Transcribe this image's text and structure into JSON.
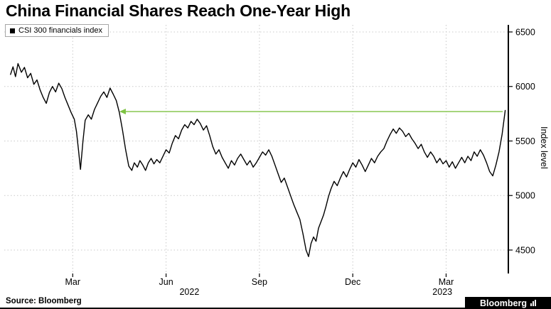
{
  "title": "China Financial Shares Reach One-Year High",
  "legend": {
    "label": "CSI 300 financials index"
  },
  "y_axis_label": "Index level",
  "source": "Source: Bloomberg",
  "brand": {
    "name": "Bloomberg"
  },
  "chart_data": {
    "type": "line",
    "series_name": "CSI 300 financials index",
    "title": "China Financial Shares Reach One-Year High",
    "ylabel": "Index level",
    "line_color": "#000000",
    "grid_color": "#c9c9c9",
    "grid": "dotted",
    "x_unit": "months_since_jan_2022",
    "xlim": [
      -0.2,
      16.0
    ],
    "ylim": [
      4285,
      6565
    ],
    "y_ticks": [
      4500,
      5000,
      5500,
      6000,
      6500
    ],
    "x_ticks": [
      {
        "t": 2,
        "label": "Mar"
      },
      {
        "t": 5,
        "label": "Jun"
      },
      {
        "t": 8,
        "label": "Sep"
      },
      {
        "t": 11,
        "label": "Dec"
      },
      {
        "t": 14,
        "label": "Mar"
      }
    ],
    "year_labels": [
      {
        "t": 5.75,
        "label": "2022"
      },
      {
        "t": 13.88,
        "label": "2023"
      }
    ],
    "annotation_arrow": {
      "value": 5770,
      "t_from": 15.82,
      "t_to": 3.5,
      "color": "#7dc242"
    },
    "points": [
      [
        0.0,
        6110
      ],
      [
        0.08,
        6180
      ],
      [
        0.16,
        6090
      ],
      [
        0.24,
        6210
      ],
      [
        0.35,
        6130
      ],
      [
        0.45,
        6175
      ],
      [
        0.55,
        6080
      ],
      [
        0.65,
        6120
      ],
      [
        0.75,
        6020
      ],
      [
        0.85,
        6060
      ],
      [
        0.95,
        5970
      ],
      [
        1.05,
        5900
      ],
      [
        1.15,
        5845
      ],
      [
        1.25,
        5945
      ],
      [
        1.35,
        6000
      ],
      [
        1.45,
        5950
      ],
      [
        1.55,
        6030
      ],
      [
        1.65,
        5980
      ],
      [
        1.75,
        5900
      ],
      [
        1.85,
        5830
      ],
      [
        1.95,
        5760
      ],
      [
        2.05,
        5700
      ],
      [
        2.12,
        5590
      ],
      [
        2.18,
        5430
      ],
      [
        2.25,
        5240
      ],
      [
        2.33,
        5500
      ],
      [
        2.4,
        5690
      ],
      [
        2.5,
        5740
      ],
      [
        2.6,
        5700
      ],
      [
        2.7,
        5790
      ],
      [
        2.8,
        5850
      ],
      [
        2.9,
        5910
      ],
      [
        3.0,
        5950
      ],
      [
        3.1,
        5900
      ],
      [
        3.2,
        5985
      ],
      [
        3.3,
        5930
      ],
      [
        3.4,
        5870
      ],
      [
        3.5,
        5760
      ],
      [
        3.6,
        5600
      ],
      [
        3.7,
        5420
      ],
      [
        3.8,
        5270
      ],
      [
        3.9,
        5230
      ],
      [
        3.98,
        5300
      ],
      [
        4.08,
        5260
      ],
      [
        4.16,
        5320
      ],
      [
        4.25,
        5280
      ],
      [
        4.34,
        5230
      ],
      [
        4.43,
        5300
      ],
      [
        4.52,
        5340
      ],
      [
        4.61,
        5290
      ],
      [
        4.7,
        5330
      ],
      [
        4.8,
        5300
      ],
      [
        4.9,
        5360
      ],
      [
        5.0,
        5420
      ],
      [
        5.1,
        5390
      ],
      [
        5.2,
        5480
      ],
      [
        5.3,
        5550
      ],
      [
        5.4,
        5520
      ],
      [
        5.5,
        5600
      ],
      [
        5.6,
        5650
      ],
      [
        5.7,
        5620
      ],
      [
        5.8,
        5680
      ],
      [
        5.9,
        5650
      ],
      [
        6.0,
        5700
      ],
      [
        6.1,
        5660
      ],
      [
        6.2,
        5600
      ],
      [
        6.3,
        5640
      ],
      [
        6.4,
        5550
      ],
      [
        6.5,
        5450
      ],
      [
        6.6,
        5380
      ],
      [
        6.7,
        5420
      ],
      [
        6.8,
        5350
      ],
      [
        6.9,
        5300
      ],
      [
        7.0,
        5250
      ],
      [
        7.1,
        5320
      ],
      [
        7.2,
        5280
      ],
      [
        7.3,
        5340
      ],
      [
        7.4,
        5380
      ],
      [
        7.5,
        5330
      ],
      [
        7.6,
        5280
      ],
      [
        7.7,
        5320
      ],
      [
        7.8,
        5260
      ],
      [
        7.9,
        5300
      ],
      [
        8.0,
        5350
      ],
      [
        8.1,
        5400
      ],
      [
        8.2,
        5370
      ],
      [
        8.3,
        5420
      ],
      [
        8.4,
        5360
      ],
      [
        8.5,
        5280
      ],
      [
        8.6,
        5200
      ],
      [
        8.7,
        5120
      ],
      [
        8.8,
        5160
      ],
      [
        8.9,
        5080
      ],
      [
        9.0,
        5000
      ],
      [
        9.1,
        4920
      ],
      [
        9.2,
        4850
      ],
      [
        9.3,
        4780
      ],
      [
        9.4,
        4650
      ],
      [
        9.5,
        4500
      ],
      [
        9.58,
        4440
      ],
      [
        9.66,
        4560
      ],
      [
        9.74,
        4620
      ],
      [
        9.82,
        4580
      ],
      [
        9.9,
        4700
      ],
      [
        9.98,
        4760
      ],
      [
        10.06,
        4820
      ],
      [
        10.14,
        4900
      ],
      [
        10.22,
        4990
      ],
      [
        10.3,
        5060
      ],
      [
        10.4,
        5130
      ],
      [
        10.5,
        5090
      ],
      [
        10.6,
        5160
      ],
      [
        10.7,
        5220
      ],
      [
        10.8,
        5170
      ],
      [
        10.9,
        5240
      ],
      [
        11.0,
        5300
      ],
      [
        11.1,
        5260
      ],
      [
        11.2,
        5330
      ],
      [
        11.3,
        5280
      ],
      [
        11.4,
        5220
      ],
      [
        11.5,
        5280
      ],
      [
        11.6,
        5340
      ],
      [
        11.7,
        5300
      ],
      [
        11.8,
        5360
      ],
      [
        11.9,
        5400
      ],
      [
        12.0,
        5430
      ],
      [
        12.1,
        5500
      ],
      [
        12.2,
        5560
      ],
      [
        12.3,
        5610
      ],
      [
        12.4,
        5570
      ],
      [
        12.5,
        5620
      ],
      [
        12.6,
        5590
      ],
      [
        12.7,
        5540
      ],
      [
        12.8,
        5570
      ],
      [
        12.9,
        5520
      ],
      [
        13.0,
        5480
      ],
      [
        13.1,
        5430
      ],
      [
        13.2,
        5470
      ],
      [
        13.3,
        5400
      ],
      [
        13.4,
        5350
      ],
      [
        13.5,
        5400
      ],
      [
        13.6,
        5360
      ],
      [
        13.7,
        5300
      ],
      [
        13.8,
        5340
      ],
      [
        13.9,
        5290
      ],
      [
        14.0,
        5320
      ],
      [
        14.1,
        5260
      ],
      [
        14.2,
        5310
      ],
      [
        14.3,
        5250
      ],
      [
        14.4,
        5300
      ],
      [
        14.5,
        5350
      ],
      [
        14.6,
        5300
      ],
      [
        14.7,
        5360
      ],
      [
        14.8,
        5320
      ],
      [
        14.9,
        5400
      ],
      [
        15.0,
        5360
      ],
      [
        15.1,
        5420
      ],
      [
        15.2,
        5370
      ],
      [
        15.3,
        5300
      ],
      [
        15.4,
        5220
      ],
      [
        15.5,
        5180
      ],
      [
        15.6,
        5280
      ],
      [
        15.7,
        5400
      ],
      [
        15.8,
        5560
      ],
      [
        15.9,
        5780
      ]
    ]
  }
}
